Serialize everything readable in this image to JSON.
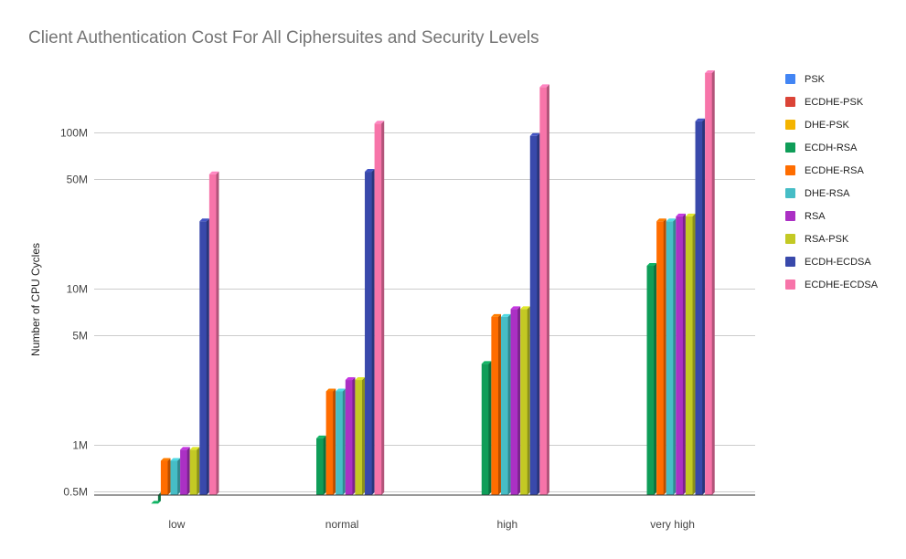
{
  "chart_data": {
    "type": "bar",
    "title": "Client Authentication Cost For All Ciphersuites and Security Levels",
    "xlabel": "",
    "ylabel": "Number of CPU Cycles",
    "yscale": "log",
    "ylim": [
      400000,
      300000000
    ],
    "y_ticks": [
      {
        "value": 500000,
        "label": "0.5M"
      },
      {
        "value": 1000000,
        "label": "1M"
      },
      {
        "value": 5000000,
        "label": "5M"
      },
      {
        "value": 10000000,
        "label": "10M"
      },
      {
        "value": 50000000,
        "label": "50M"
      },
      {
        "value": 100000000,
        "label": "100M"
      }
    ],
    "grid": true,
    "legend_position": "right",
    "style": "3d-bars",
    "categories": [
      "low",
      "normal",
      "high",
      "very high"
    ],
    "series": [
      {
        "name": "PSK",
        "color": "#4285f4",
        "values": [
          null,
          null,
          null,
          null
        ]
      },
      {
        "name": "ECDHE-PSK",
        "color": "#db4437",
        "values": [
          null,
          null,
          null,
          null
        ]
      },
      {
        "name": "DHE-PSK",
        "color": "#f4b400",
        "values": [
          null,
          null,
          null,
          null
        ]
      },
      {
        "name": "ECDH-RSA",
        "color": "#0f9d58",
        "values": [
          420000,
          1100000,
          3300000,
          14000000
        ]
      },
      {
        "name": "ECDHE-RSA",
        "color": "#ff6d00",
        "values": [
          790000,
          2200000,
          6600000,
          27000000
        ]
      },
      {
        "name": "DHE-RSA",
        "color": "#46bdc6",
        "values": [
          790000,
          2200000,
          6600000,
          27000000
        ]
      },
      {
        "name": "RSA",
        "color": "#ab30c4",
        "values": [
          930000,
          2600000,
          7400000,
          29000000
        ]
      },
      {
        "name": "RSA-PSK",
        "color": "#c3c924",
        "values": [
          930000,
          2600000,
          7400000,
          29000000
        ]
      },
      {
        "name": "ECDH-ECDSA",
        "color": "#3949ab",
        "values": [
          27000000,
          56000000,
          95000000,
          118000000
        ]
      },
      {
        "name": "ECDHE-ECDSA",
        "color": "#f774a9",
        "values": [
          54000000,
          114000000,
          195000000,
          240000000
        ]
      }
    ]
  }
}
